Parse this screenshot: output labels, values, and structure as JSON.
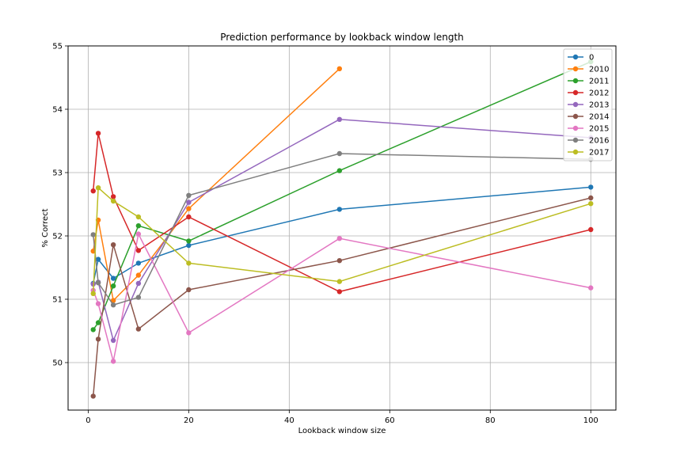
{
  "chart_data": {
    "type": "line",
    "title": "Prediction performance by lookback window length",
    "xlabel": "Lookback window size",
    "ylabel": "% Correct",
    "xlim": [
      -4,
      105
    ],
    "ylim": [
      49.25,
      55.0
    ],
    "xticks": [
      0,
      20,
      40,
      60,
      80,
      100
    ],
    "yticks": [
      50,
      51,
      52,
      53,
      54,
      55
    ],
    "grid": true,
    "legend_position": "top-right",
    "x": [
      1,
      2,
      5,
      10,
      20,
      50,
      100
    ],
    "series": [
      {
        "name": "0",
        "color": "#1f77b4",
        "values": [
          51.25,
          51.63,
          51.33,
          51.57,
          51.85,
          52.42,
          52.77
        ]
      },
      {
        "name": "2010",
        "color": "#ff7f0e",
        "values": [
          51.76,
          52.25,
          50.98,
          51.38,
          52.43,
          54.64,
          null
        ]
      },
      {
        "name": "2011",
        "color": "#2ca02c",
        "values": [
          50.52,
          50.63,
          51.21,
          52.16,
          51.92,
          53.03,
          54.75
        ]
      },
      {
        "name": "2012",
        "color": "#d62728",
        "values": [
          52.71,
          53.62,
          52.62,
          51.77,
          52.3,
          51.12,
          52.1
        ]
      },
      {
        "name": "2013",
        "color": "#9467bd",
        "values": [
          51.24,
          51.27,
          50.35,
          51.25,
          52.53,
          53.84,
          53.55
        ]
      },
      {
        "name": "2014",
        "color": "#8c564b",
        "values": [
          49.47,
          50.37,
          51.86,
          50.53,
          51.15,
          51.61,
          52.6
        ]
      },
      {
        "name": "2015",
        "color": "#e377c2",
        "values": [
          51.14,
          50.93,
          50.02,
          52.03,
          50.47,
          51.96,
          51.18
        ]
      },
      {
        "name": "2016",
        "color": "#7f7f7f",
        "values": [
          52.02,
          51.26,
          50.91,
          51.03,
          52.64,
          53.3,
          53.21
        ]
      },
      {
        "name": "2017",
        "color": "#bcbd22",
        "values": [
          51.09,
          52.76,
          52.55,
          52.3,
          51.57,
          51.28,
          52.51
        ]
      }
    ]
  }
}
